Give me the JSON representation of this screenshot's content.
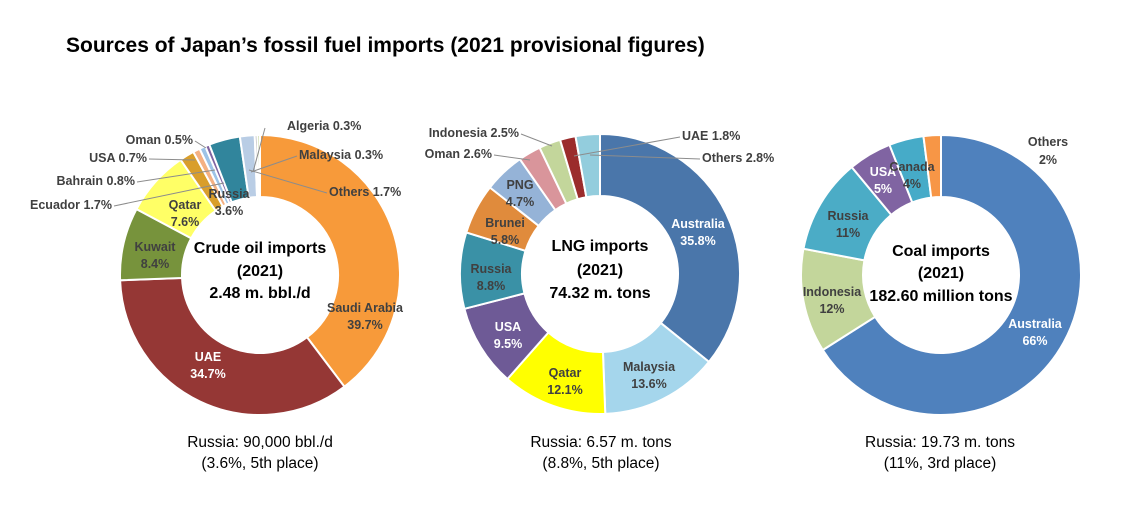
{
  "title": "Sources of Japan’s fossil fuel imports (2021 provisional figures)",
  "chart_data": [
    {
      "type": "pie",
      "style": "donut",
      "center_lines": [
        "Crude oil imports",
        "(2021)",
        "2.48 m. bbl./d"
      ],
      "slices": [
        {
          "label": "Saudi Arabia",
          "value": 39.7,
          "value_text": "39.7%",
          "color": "#F79A3A",
          "label_color": "#404040"
        },
        {
          "label": "UAE",
          "value": 34.7,
          "value_text": "34.7%",
          "color": "#953735",
          "label_color": "#ffffff"
        },
        {
          "label": "Kuwait",
          "value": 8.4,
          "value_text": "8.4%",
          "color": "#77933C",
          "label_color": "#404040"
        },
        {
          "label": "Qatar",
          "value": 7.6,
          "value_text": "7.6%",
          "color": "#FFFF66",
          "label_color": "#404040"
        },
        {
          "label": "Ecuador",
          "value": 1.7,
          "value_text": "1.7%",
          "color": "#D99E2B",
          "label_color": "#404040"
        },
        {
          "label": "Bahrain",
          "value": 0.8,
          "value_text": "0.8%",
          "color": "#F4B183",
          "label_color": "#404040"
        },
        {
          "label": "USA",
          "value": 0.7,
          "value_text": "0.7%",
          "color": "#9DC3E6",
          "label_color": "#404040"
        },
        {
          "label": "Oman",
          "value": 0.5,
          "value_text": "0.5%",
          "color": "#8064A2",
          "label_color": "#404040"
        },
        {
          "label": "Russia",
          "value": 3.6,
          "value_text": "3.6%",
          "color": "#31859C",
          "label_color": "#404040"
        },
        {
          "label": "Others",
          "value": 1.7,
          "value_text": "1.7%",
          "color": "#B9CDE5",
          "label_color": "#404040"
        },
        {
          "label": "Malaysia",
          "value": 0.3,
          "value_text": "0.3%",
          "color": "#A6A6A6",
          "label_color": "#404040"
        },
        {
          "label": "Algeria",
          "value": 0.3,
          "value_text": "0.3%",
          "color": "#C3D69B",
          "label_color": "#404040"
        }
      ],
      "footnote": [
        "Russia: 90,000 bbl./d",
        "(3.6%, 5th place)"
      ]
    },
    {
      "type": "pie",
      "style": "donut",
      "center_lines": [
        "LNG imports",
        "(2021)",
        "74.32 m. tons"
      ],
      "slices": [
        {
          "label": "Australia",
          "value": 35.8,
          "value_text": "35.8%",
          "color": "#4A76AA",
          "label_color": "#ffffff"
        },
        {
          "label": "Malaysia",
          "value": 13.6,
          "value_text": "13.6%",
          "color": "#A5D6EC",
          "label_color": "#404040"
        },
        {
          "label": "Qatar",
          "value": 12.1,
          "value_text": "12.1%",
          "color": "#FFFF00",
          "label_color": "#404040"
        },
        {
          "label": "USA",
          "value": 9.5,
          "value_text": "9.5%",
          "color": "#6E5A96",
          "label_color": "#ffffff"
        },
        {
          "label": "Russia",
          "value": 8.8,
          "value_text": "8.8%",
          "color": "#3A91A6",
          "label_color": "#404040"
        },
        {
          "label": "Brunei",
          "value": 5.8,
          "value_text": "5.8%",
          "color": "#E08B3C",
          "label_color": "#404040"
        },
        {
          "label": "PNG",
          "value": 4.7,
          "value_text": "4.7%",
          "color": "#95B3D7",
          "label_color": "#404040"
        },
        {
          "label": "Oman",
          "value": 2.6,
          "value_text": "2.6%",
          "color": "#D9959B",
          "label_color": "#404040"
        },
        {
          "label": "Indonesia",
          "value": 2.5,
          "value_text": "2.5%",
          "color": "#C3D69B",
          "label_color": "#404040"
        },
        {
          "label": "UAE",
          "value": 1.8,
          "value_text": "1.8%",
          "color": "#9B2C2C",
          "label_color": "#404040"
        },
        {
          "label": "Others",
          "value": 2.8,
          "value_text": "2.8%",
          "color": "#93CDDD",
          "label_color": "#404040"
        }
      ],
      "footnote": [
        "Russia: 6.57 m. tons",
        "(8.8%, 5th place)"
      ]
    },
    {
      "type": "pie",
      "style": "donut",
      "center_lines": [
        "Coal imports",
        "(2021)",
        "182.60 million tons"
      ],
      "slices": [
        {
          "label": "Australia",
          "value": 66,
          "value_text": "66%",
          "color": "#4F81BD",
          "label_color": "#ffffff"
        },
        {
          "label": "Indonesia",
          "value": 12,
          "value_text": "12%",
          "color": "#C3D69B",
          "label_color": "#404040"
        },
        {
          "label": "Russia",
          "value": 11,
          "value_text": "11%",
          "color": "#4BACC6",
          "label_color": "#404040"
        },
        {
          "label": "USA",
          "value": 5,
          "value_text": "5%",
          "color": "#8064A2",
          "label_color": "#ffffff"
        },
        {
          "label": "Canada",
          "value": 4,
          "value_text": "4%",
          "color": "#46ABC8",
          "label_color": "#404040"
        },
        {
          "label": "Others",
          "value": 2,
          "value_text": "2%",
          "color": "#F79646",
          "label_color": "#404040"
        }
      ],
      "footnote": [
        "Russia: 19.73 m. tons",
        "(11%, 3rd place)"
      ]
    }
  ]
}
